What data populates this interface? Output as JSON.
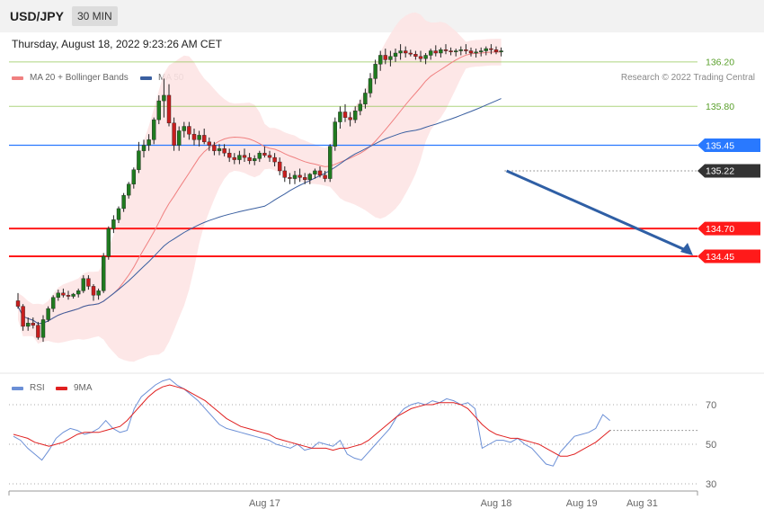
{
  "header": {
    "symbol": "USD/JPY",
    "timeframe": "30 MIN",
    "datetime": "Thursday, August 18, 2022 9:23:26 AM CET"
  },
  "legend": {
    "ma20": {
      "label": "MA 20 + Bollinger Bands",
      "color": "#f08080"
    },
    "ma50": {
      "label": "MA 50",
      "color": "#3a5fa0"
    },
    "copyright": "Research © 2022 Trading Central"
  },
  "rsi_legend": {
    "rsi": {
      "label": "RSI",
      "color": "#6b8fd6"
    },
    "ma9": {
      "label": "9MA",
      "color": "#e02020"
    }
  },
  "chart_data": [
    {
      "type": "candlestick",
      "ylim": [
        133.05,
        136.45
      ],
      "levels": [
        {
          "value": 136.2,
          "label": "136.20",
          "color": "#8bc34a",
          "style": "line"
        },
        {
          "value": 135.8,
          "label": "135.80",
          "color": "#8bc34a",
          "style": "line"
        },
        {
          "value": 135.45,
          "label": "135.45",
          "color": "#2979ff",
          "style": "line"
        },
        {
          "value": 135.22,
          "label": "135.22",
          "color": "#333333",
          "style": "dotted"
        },
        {
          "value": 134.7,
          "label": "134.70",
          "color": "#ff1a1a",
          "style": "thick"
        },
        {
          "value": 134.45,
          "label": "134.45",
          "color": "#ff1a1a",
          "style": "thick"
        }
      ],
      "forecast_arrow": {
        "from": 135.22,
        "to": 134.45,
        "color": "#2f5fa5"
      },
      "x_ticks": [
        {
          "label": "Aug 17",
          "bar": 49
        },
        {
          "label": "Aug 18",
          "bar": 95
        },
        {
          "label": "Aug 19",
          "bar": 112
        },
        {
          "label": "Aug 31",
          "bar": 124
        }
      ],
      "candles": [
        [
          134.05,
          134.12,
          133.98,
          134.0
        ],
        [
          134.0,
          134.02,
          133.78,
          133.82
        ],
        [
          133.82,
          133.9,
          133.78,
          133.85
        ],
        [
          133.85,
          133.9,
          133.8,
          133.83
        ],
        [
          133.83,
          133.86,
          133.7,
          133.72
        ],
        [
          133.72,
          133.92,
          133.68,
          133.88
        ],
        [
          133.88,
          134.0,
          133.86,
          133.98
        ],
        [
          133.98,
          134.1,
          133.95,
          134.08
        ],
        [
          134.08,
          134.15,
          134.05,
          134.12
        ],
        [
          134.12,
          134.16,
          134.08,
          134.1
        ],
        [
          134.1,
          134.14,
          134.06,
          134.09
        ],
        [
          134.09,
          134.12,
          134.07,
          134.11
        ],
        [
          134.11,
          134.16,
          134.08,
          134.14
        ],
        [
          134.14,
          134.28,
          134.12,
          134.25
        ],
        [
          134.25,
          134.28,
          134.15,
          134.18
        ],
        [
          134.18,
          134.2,
          134.05,
          134.1
        ],
        [
          134.1,
          134.16,
          134.06,
          134.14
        ],
        [
          134.14,
          134.48,
          134.12,
          134.45
        ],
        [
          134.45,
          134.72,
          134.42,
          134.7
        ],
        [
          134.7,
          134.82,
          134.66,
          134.78
        ],
        [
          134.78,
          134.9,
          134.75,
          134.88
        ],
        [
          134.88,
          135.02,
          134.85,
          135.0
        ],
        [
          135.0,
          135.12,
          134.97,
          135.1
        ],
        [
          135.1,
          135.25,
          135.06,
          135.23
        ],
        [
          135.23,
          135.48,
          135.2,
          135.4
        ],
        [
          135.4,
          135.5,
          135.34,
          135.45
        ],
        [
          135.45,
          135.55,
          135.4,
          135.5
        ],
        [
          135.5,
          135.7,
          135.46,
          135.68
        ],
        [
          135.68,
          135.9,
          135.64,
          135.85
        ],
        [
          135.85,
          136.05,
          135.7,
          135.9
        ],
        [
          135.9,
          136.0,
          135.62,
          135.65
        ],
        [
          135.65,
          135.7,
          135.4,
          135.45
        ],
        [
          135.45,
          135.62,
          135.4,
          135.58
        ],
        [
          135.58,
          135.66,
          135.52,
          135.62
        ],
        [
          135.62,
          135.66,
          135.5,
          135.55
        ],
        [
          135.55,
          135.6,
          135.45,
          135.5
        ],
        [
          135.5,
          135.58,
          135.44,
          135.54
        ],
        [
          135.54,
          135.6,
          135.46,
          135.48
        ],
        [
          135.48,
          135.52,
          135.4,
          135.45
        ],
        [
          135.45,
          135.48,
          135.36,
          135.4
        ],
        [
          135.4,
          135.46,
          135.36,
          135.42
        ],
        [
          135.42,
          135.46,
          135.35,
          135.38
        ],
        [
          135.38,
          135.42,
          135.3,
          135.34
        ],
        [
          135.34,
          135.38,
          135.28,
          135.32
        ],
        [
          135.32,
          135.4,
          135.28,
          135.36
        ],
        [
          135.36,
          135.42,
          135.3,
          135.34
        ],
        [
          135.34,
          135.38,
          135.28,
          135.31
        ],
        [
          135.31,
          135.36,
          135.27,
          135.33
        ],
        [
          135.33,
          135.4,
          135.3,
          135.38
        ],
        [
          135.38,
          135.44,
          135.34,
          135.36
        ],
        [
          135.36,
          135.4,
          135.3,
          135.34
        ],
        [
          135.34,
          135.38,
          135.26,
          135.3
        ],
        [
          135.3,
          135.34,
          135.18,
          135.22
        ],
        [
          135.22,
          135.26,
          135.12,
          135.16
        ],
        [
          135.16,
          135.2,
          135.1,
          135.15
        ],
        [
          135.15,
          135.22,
          135.1,
          135.18
        ],
        [
          135.18,
          135.24,
          135.12,
          135.16
        ],
        [
          135.16,
          135.2,
          135.1,
          135.14
        ],
        [
          135.14,
          135.2,
          135.1,
          135.19
        ],
        [
          135.19,
          135.24,
          135.15,
          135.22
        ],
        [
          135.22,
          135.26,
          135.16,
          135.18
        ],
        [
          135.18,
          135.22,
          135.12,
          135.15
        ],
        [
          135.15,
          135.46,
          135.12,
          135.44
        ],
        [
          135.44,
          135.7,
          135.4,
          135.66
        ],
        [
          135.66,
          135.8,
          135.6,
          135.75
        ],
        [
          135.75,
          135.82,
          135.66,
          135.7
        ],
        [
          135.7,
          135.75,
          135.62,
          135.68
        ],
        [
          135.68,
          135.8,
          135.65,
          135.76
        ],
        [
          135.76,
          135.86,
          135.72,
          135.82
        ],
        [
          135.82,
          135.96,
          135.78,
          135.92
        ],
        [
          135.92,
          136.1,
          135.88,
          136.05
        ],
        [
          136.05,
          136.22,
          136.0,
          136.18
        ],
        [
          136.18,
          136.3,
          136.12,
          136.26
        ],
        [
          136.26,
          136.32,
          136.18,
          136.22
        ],
        [
          136.22,
          136.3,
          136.16,
          136.25
        ],
        [
          136.25,
          136.32,
          136.2,
          136.28
        ],
        [
          136.28,
          136.36,
          136.22,
          136.3
        ],
        [
          136.3,
          136.34,
          136.24,
          136.28
        ],
        [
          136.28,
          136.31,
          136.25,
          136.27
        ],
        [
          136.27,
          136.3,
          136.22,
          136.25
        ],
        [
          136.25,
          136.3,
          136.2,
          136.23
        ],
        [
          136.23,
          136.28,
          136.18,
          136.26
        ],
        [
          136.26,
          136.32,
          136.22,
          136.3
        ],
        [
          136.3,
          136.35,
          136.25,
          136.28
        ],
        [
          136.28,
          136.33,
          136.24,
          136.31
        ],
        [
          136.31,
          136.36,
          136.27,
          136.3
        ],
        [
          136.3,
          136.33,
          136.26,
          136.29
        ],
        [
          136.29,
          136.32,
          136.25,
          136.3
        ],
        [
          136.3,
          136.34,
          136.26,
          136.31
        ],
        [
          136.31,
          136.36,
          136.27,
          136.3
        ],
        [
          136.3,
          136.33,
          136.25,
          136.28
        ],
        [
          136.28,
          136.32,
          136.24,
          136.29
        ],
        [
          136.29,
          136.33,
          136.25,
          136.3
        ],
        [
          136.3,
          136.34,
          136.26,
          136.32
        ],
        [
          136.32,
          136.36,
          136.27,
          136.31
        ],
        [
          136.31,
          136.34,
          136.27,
          136.29
        ],
        [
          136.29,
          136.33,
          136.25,
          136.3
        ]
      ]
    },
    {
      "type": "line",
      "title": "RSI",
      "ylim": [
        20,
        80
      ],
      "y_ticks": [
        30,
        50,
        70
      ],
      "series": [
        {
          "name": "RSI",
          "color": "#6b8fd6",
          "values": [
            54,
            52,
            48,
            45,
            42,
            47,
            53,
            56,
            58,
            57,
            55,
            56,
            58,
            62,
            58,
            56,
            57,
            68,
            74,
            77,
            80,
            82,
            83,
            80,
            78,
            75,
            72,
            68,
            64,
            60,
            58,
            57,
            56,
            55,
            54,
            53,
            52,
            50,
            49,
            48,
            50,
            47,
            48,
            51,
            50,
            49,
            52,
            45,
            43,
            42,
            46,
            50,
            54,
            58,
            64,
            68,
            70,
            71,
            70,
            72,
            71,
            73,
            72,
            70,
            71,
            68,
            48,
            50,
            52,
            52,
            51,
            53,
            50,
            48,
            44,
            40,
            39,
            46,
            50,
            54,
            55,
            56,
            58,
            65,
            62
          ]
        },
        {
          "name": "9MA",
          "color": "#e02020",
          "values": [
            55,
            54,
            53,
            51,
            50,
            49,
            50,
            51,
            53,
            55,
            56,
            56,
            56,
            57,
            58,
            59,
            62,
            66,
            70,
            74,
            77,
            79,
            80,
            79,
            78,
            76,
            74,
            72,
            69,
            66,
            63,
            61,
            59,
            58,
            57,
            56,
            55,
            53,
            52,
            51,
            50,
            49,
            48,
            48,
            48,
            47,
            48,
            48,
            49,
            50,
            52,
            55,
            58,
            61,
            64,
            66,
            68,
            69,
            70,
            70,
            71,
            71,
            71,
            70,
            68,
            64,
            60,
            57,
            55,
            54,
            53,
            53,
            52,
            51,
            50,
            48,
            46,
            44,
            44,
            45,
            47,
            49,
            51,
            54,
            57
          ]
        }
      ],
      "rsi_last": 57
    }
  ]
}
